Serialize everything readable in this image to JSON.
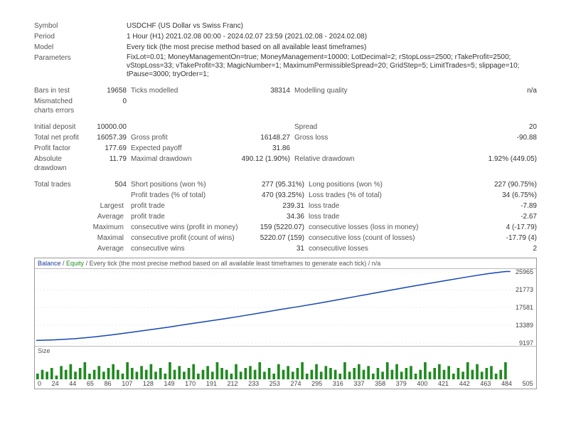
{
  "header": {
    "symbol_label": "Symbol",
    "symbol_value": "USDCHF (US Dollar vs Swiss Franc)",
    "period_label": "Period",
    "period_value": "1 Hour (H1) 2021.02.08 00:00 - 2024.02.07 23:59 (2021.02.08 - 2024.02.08)",
    "model_label": "Model",
    "model_value": "Every tick (the most precise method based on all available least timeframes)",
    "parameters_label": "Parameters",
    "parameters_value": "FixLot=0.01; MoneyManagementOn=true; MoneyManagement=10000; LotDecimal=2; rStopLoss=2500; rTakeProfit=2500; vStopLoss=33; vTakeProfit=33; MagicNumber=1; MaximumPermissibleSpread=20; GridStep=5; LimitTrades=5; slippage=10; tPause=3000; tryOrder=1;"
  },
  "stats1": {
    "bars_label": "Bars in test",
    "bars_val": "19658",
    "ticks_label": "Ticks modelled",
    "ticks_val": "38314",
    "mq_label": "Modelling quality",
    "mq_val": "n/a",
    "mismatch_label": "Mismatched charts errors",
    "mismatch_val": "0"
  },
  "stats2": {
    "deposit_label": "Initial deposit",
    "deposit_val": "10000.00",
    "spread_label": "Spread",
    "spread_val": "20",
    "netprofit_label": "Total net profit",
    "netprofit_val": "16057.39",
    "gross_profit_label": "Gross profit",
    "gross_profit_val": "16148.27",
    "gross_loss_label": "Gross loss",
    "gross_loss_val": "-90.88",
    "pf_label": "Profit factor",
    "pf_val": "177.69",
    "ep_label": "Expected payoff",
    "ep_val": "31.86",
    "ad_label": "Absolute drawdown",
    "ad_val": "11.79",
    "md_label": "Maximal drawdown",
    "md_val": "490.12 (1.90%)",
    "rd_label": "Relative drawdown",
    "rd_val": "1.92% (449.05)"
  },
  "stats3": {
    "tt_label": "Total trades",
    "tt_val": "504",
    "short_label": "Short positions (won %)",
    "short_val": "277 (95.31%)",
    "long_label": "Long positions (won %)",
    "long_val": "227 (90.75%)",
    "pt_label": "Profit trades (% of total)",
    "pt_val": "470 (93.25%)",
    "lt_label": "Loss trades (% of total)",
    "lt_val": "34 (6.75%)",
    "largest_label": "Largest",
    "lpt_label": "profit trade",
    "lpt_val": "239.31",
    "llt_label": "loss trade",
    "llt_val": "-7.89",
    "average_label": "Average",
    "apt_label": "profit trade",
    "apt_val": "34.36",
    "alt_label": "loss trade",
    "alt_val": "-2.67",
    "maximum_label": "Maximum",
    "mcw_label": "consecutive wins (profit in money)",
    "mcw_val": "159 (5220.07)",
    "mcl_label": "consecutive losses (loss in money)",
    "mcl_val": "4 (-17.79)",
    "maximal_label": "Maximal",
    "mcp_label": "consecutive profit (count of wins)",
    "mcp_val": "5220.07 (159)",
    "mcls_label": "consecutive loss (count of losses)",
    "mcls_val": "-17.79 (4)",
    "average2_label": "Average",
    "acw_label": "consecutive wins",
    "acw_val": "31",
    "acl_label": "consecutive losses",
    "acl_val": "2"
  },
  "chart": {
    "header_balance": "Balance",
    "header_sep1": " / ",
    "header_equity": "Equity",
    "header_rest": " / Every tick (the most precise method based on all available least timeframes to generate each tick) / n/a",
    "size_label": "Size",
    "ylabels": [
      "25965",
      "21773",
      "17581",
      "13389",
      "9197"
    ],
    "xlabels": [
      "0",
      "24",
      "44",
      "65",
      "86",
      "107",
      "128",
      "149",
      "170",
      "191",
      "212",
      "233",
      "253",
      "274",
      "295",
      "316",
      "337",
      "358",
      "379",
      "400",
      "421",
      "442",
      "463",
      "484",
      "505"
    ],
    "equity_color": "#1447b8",
    "vol_color": "#1f8a1f",
    "grid_color": "#d8d8d8",
    "bg": "#ffffff",
    "equity_points": [
      [
        0,
        9800
      ],
      [
        20,
        9950
      ],
      [
        40,
        10200
      ],
      [
        60,
        10600
      ],
      [
        80,
        11100
      ],
      [
        100,
        11700
      ],
      [
        120,
        12300
      ],
      [
        140,
        12900
      ],
      [
        160,
        13600
      ],
      [
        180,
        14250
      ],
      [
        200,
        14900
      ],
      [
        220,
        15600
      ],
      [
        240,
        16350
      ],
      [
        260,
        17100
      ],
      [
        280,
        17800
      ],
      [
        300,
        18550
      ],
      [
        320,
        19350
      ],
      [
        340,
        20150
      ],
      [
        360,
        20950
      ],
      [
        380,
        21750
      ],
      [
        400,
        22550
      ],
      [
        420,
        23300
      ],
      [
        440,
        24050
      ],
      [
        460,
        24800
      ],
      [
        480,
        25500
      ],
      [
        500,
        26057
      ],
      [
        505,
        26057
      ]
    ],
    "ylim": [
      9197,
      25965
    ],
    "xlim": [
      0,
      505
    ],
    "vol_bars": [
      3,
      5,
      4,
      6,
      2,
      7,
      5,
      8,
      4,
      6,
      9,
      3,
      5,
      7,
      4,
      6,
      8,
      5,
      3,
      9,
      6,
      4,
      7,
      5,
      8,
      4,
      6,
      3,
      9,
      5,
      7,
      4,
      6,
      8,
      3,
      5,
      7,
      4,
      9,
      6,
      5,
      3,
      8,
      4,
      6,
      7,
      5,
      9,
      4,
      6,
      3,
      8,
      5,
      7,
      4,
      6,
      9,
      3,
      5,
      8,
      4,
      7,
      6,
      5,
      3,
      9,
      4,
      6,
      8,
      5,
      7,
      3,
      6,
      4,
      9,
      5,
      8,
      4,
      6,
      7,
      3,
      5,
      9,
      4,
      6,
      8,
      5,
      7,
      3,
      6,
      4,
      9,
      5,
      8,
      4,
      6,
      7,
      3,
      5,
      9
    ],
    "vol_max": 12
  }
}
